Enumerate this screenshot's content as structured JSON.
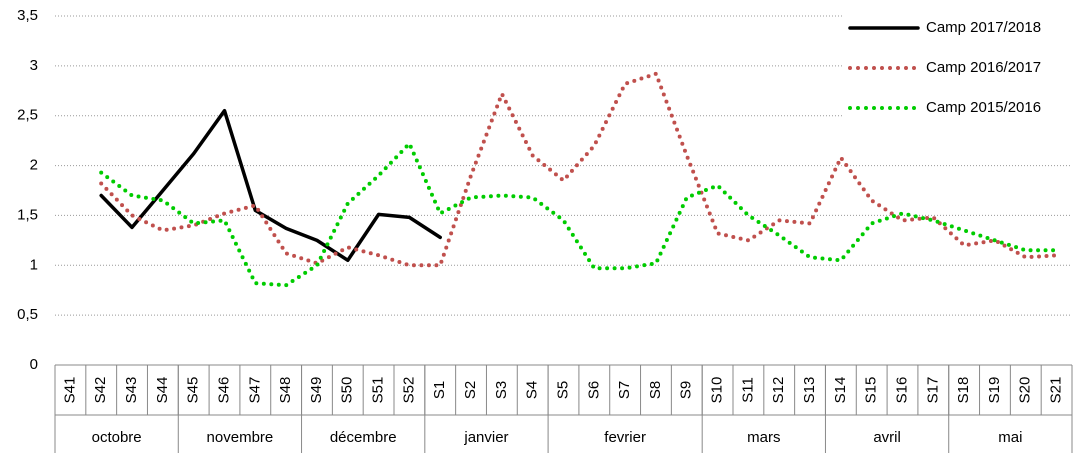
{
  "chart_data": {
    "type": "line",
    "categories": [
      "S41",
      "S42",
      "S43",
      "S44",
      "S45",
      "S46",
      "S47",
      "S48",
      "S49",
      "S50",
      "S51",
      "S52",
      "S1",
      "S2",
      "S3",
      "S4",
      "S5",
      "S6",
      "S7",
      "S8",
      "S9",
      "S10",
      "S11",
      "S12",
      "S13",
      "S14",
      "S15",
      "S16",
      "S17",
      "S18",
      "S19",
      "S20",
      "S21"
    ],
    "month_groups": [
      {
        "label": "octobre",
        "span": 4
      },
      {
        "label": "novembre",
        "span": 4
      },
      {
        "label": "décembre",
        "span": 4
      },
      {
        "label": "janvier",
        "span": 4
      },
      {
        "label": "fevrier",
        "span": 5
      },
      {
        "label": "mars",
        "span": 4
      },
      {
        "label": "avril",
        "span": 4
      },
      {
        "label": "mai",
        "span": 4
      }
    ],
    "series": [
      {
        "name": "Camp 2017/2018",
        "color": "#000000",
        "style": "solid",
        "values": [
          null,
          1.7,
          1.38,
          1.75,
          2.12,
          2.55,
          1.55,
          1.37,
          1.25,
          1.05,
          1.51,
          1.48,
          1.28,
          null,
          null,
          null,
          null,
          null,
          null,
          null,
          null,
          null,
          null,
          null,
          null,
          null,
          null,
          null,
          null,
          null,
          null,
          null,
          null
        ]
      },
      {
        "name": "Camp 2016/2017",
        "color": "#c0504d",
        "style": "dotted",
        "values": [
          null,
          1.82,
          1.5,
          1.35,
          1.4,
          1.52,
          1.6,
          1.12,
          1.02,
          1.18,
          1.1,
          1.0,
          1.0,
          1.9,
          2.72,
          2.1,
          1.85,
          2.2,
          2.82,
          2.92,
          2.1,
          1.32,
          1.25,
          1.45,
          1.42,
          2.08,
          1.65,
          1.45,
          1.48,
          1.2,
          1.25,
          1.08,
          1.1
        ]
      },
      {
        "name": "Camp 2015/2016",
        "color": "#00cc00",
        "style": "dotted",
        "values": [
          null,
          1.93,
          1.7,
          1.65,
          1.42,
          1.45,
          0.82,
          0.8,
          1.0,
          1.62,
          1.9,
          2.22,
          1.52,
          1.68,
          1.7,
          1.68,
          1.45,
          0.97,
          0.97,
          1.02,
          1.68,
          1.8,
          1.5,
          1.3,
          1.08,
          1.05,
          1.42,
          1.52,
          1.45,
          1.35,
          1.25,
          1.15,
          1.15
        ]
      }
    ],
    "ylim": [
      0,
      3.5
    ],
    "yticks": [
      0,
      {
        "value": 0.5,
        "label": "0,5"
      },
      1,
      {
        "value": 1.5,
        "label": "1,5"
      },
      2,
      {
        "value": 2.5,
        "label": "2,5"
      },
      3,
      {
        "value": 3.5,
        "label": "3,5"
      }
    ],
    "grid": true
  }
}
